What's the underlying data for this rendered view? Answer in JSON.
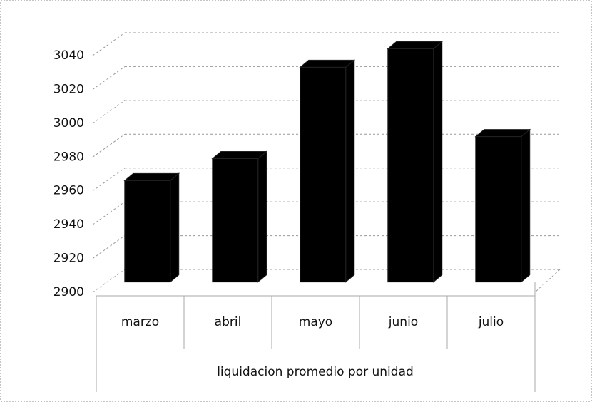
{
  "chart_data": {
    "type": "bar3d",
    "x_label": "liquidacion promedio por unidad",
    "categories": [
      "marzo",
      "abril",
      "mayo",
      "junio",
      "julio"
    ],
    "values": [
      2960,
      2973,
      3027,
      3038,
      2986
    ],
    "color": "#000000",
    "ylim": [
      2900,
      3040
    ],
    "yticks": [
      2900,
      2920,
      2940,
      2960,
      2980,
      3000,
      3020,
      3040
    ],
    "grid": true
  }
}
